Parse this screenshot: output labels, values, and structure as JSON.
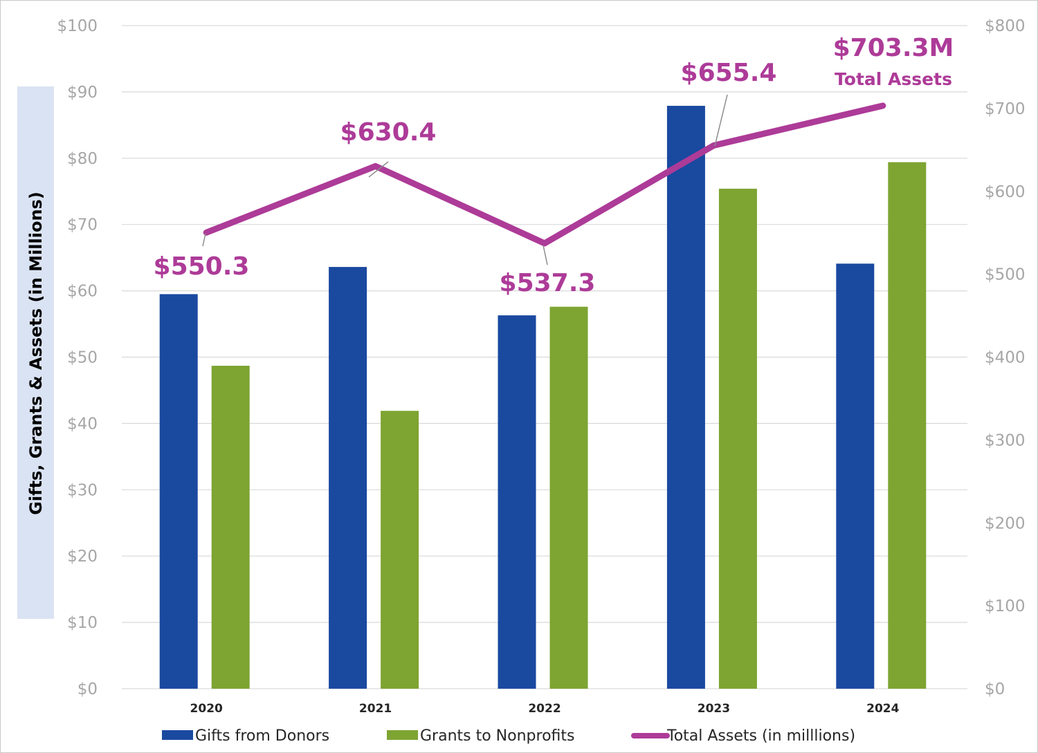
{
  "chart_data": {
    "type": "bar",
    "categories": [
      "2020",
      "2021",
      "2022",
      "2023",
      "2024"
    ],
    "series": [
      {
        "name": "Gifts from Donors",
        "kind": "bar",
        "axis": "left",
        "color": "#1a49a0",
        "values": [
          59.5,
          63.6,
          56.3,
          87.9,
          64.1
        ]
      },
      {
        "name": "Grants to Nonprofits",
        "kind": "bar",
        "axis": "left",
        "color": "#7ea432",
        "values": [
          48.7,
          41.9,
          57.6,
          75.4,
          79.4
        ]
      },
      {
        "name": "Total Assets (in milllions)",
        "kind": "line",
        "axis": "right",
        "color": "#ad3b98",
        "values": [
          550.3,
          630.4,
          537.3,
          655.4,
          703.3
        ]
      }
    ],
    "left_axis": {
      "label": "Gifts, Grants & Assets (in Millions)",
      "ylim": [
        0,
        100
      ],
      "ticks": [
        "$0",
        "$10",
        "$20",
        "$30",
        "$40",
        "$50",
        "$60",
        "$70",
        "$80",
        "$90",
        "$100"
      ]
    },
    "right_axis": {
      "ylim": [
        0,
        800
      ],
      "ticks": [
        "$0",
        "$100",
        "$200",
        "$300",
        "$400",
        "$500",
        "$600",
        "$700",
        "$800"
      ]
    },
    "annotations": [
      {
        "text": "$550.3",
        "point": 0
      },
      {
        "text": "$630.4",
        "point": 1
      },
      {
        "text": "$537.3",
        "point": 2
      },
      {
        "text": "$655.4",
        "point": 3
      },
      {
        "text": "$703.3M",
        "subtext": "Total Assets",
        "point": 4
      }
    ],
    "grid": true,
    "legend": "bottom"
  },
  "colors": {
    "grid": "#d9d9d9",
    "tick": "#a6a6a6",
    "ylabel_bg": "#dae3f3",
    "callout": "#ad3b98"
  }
}
